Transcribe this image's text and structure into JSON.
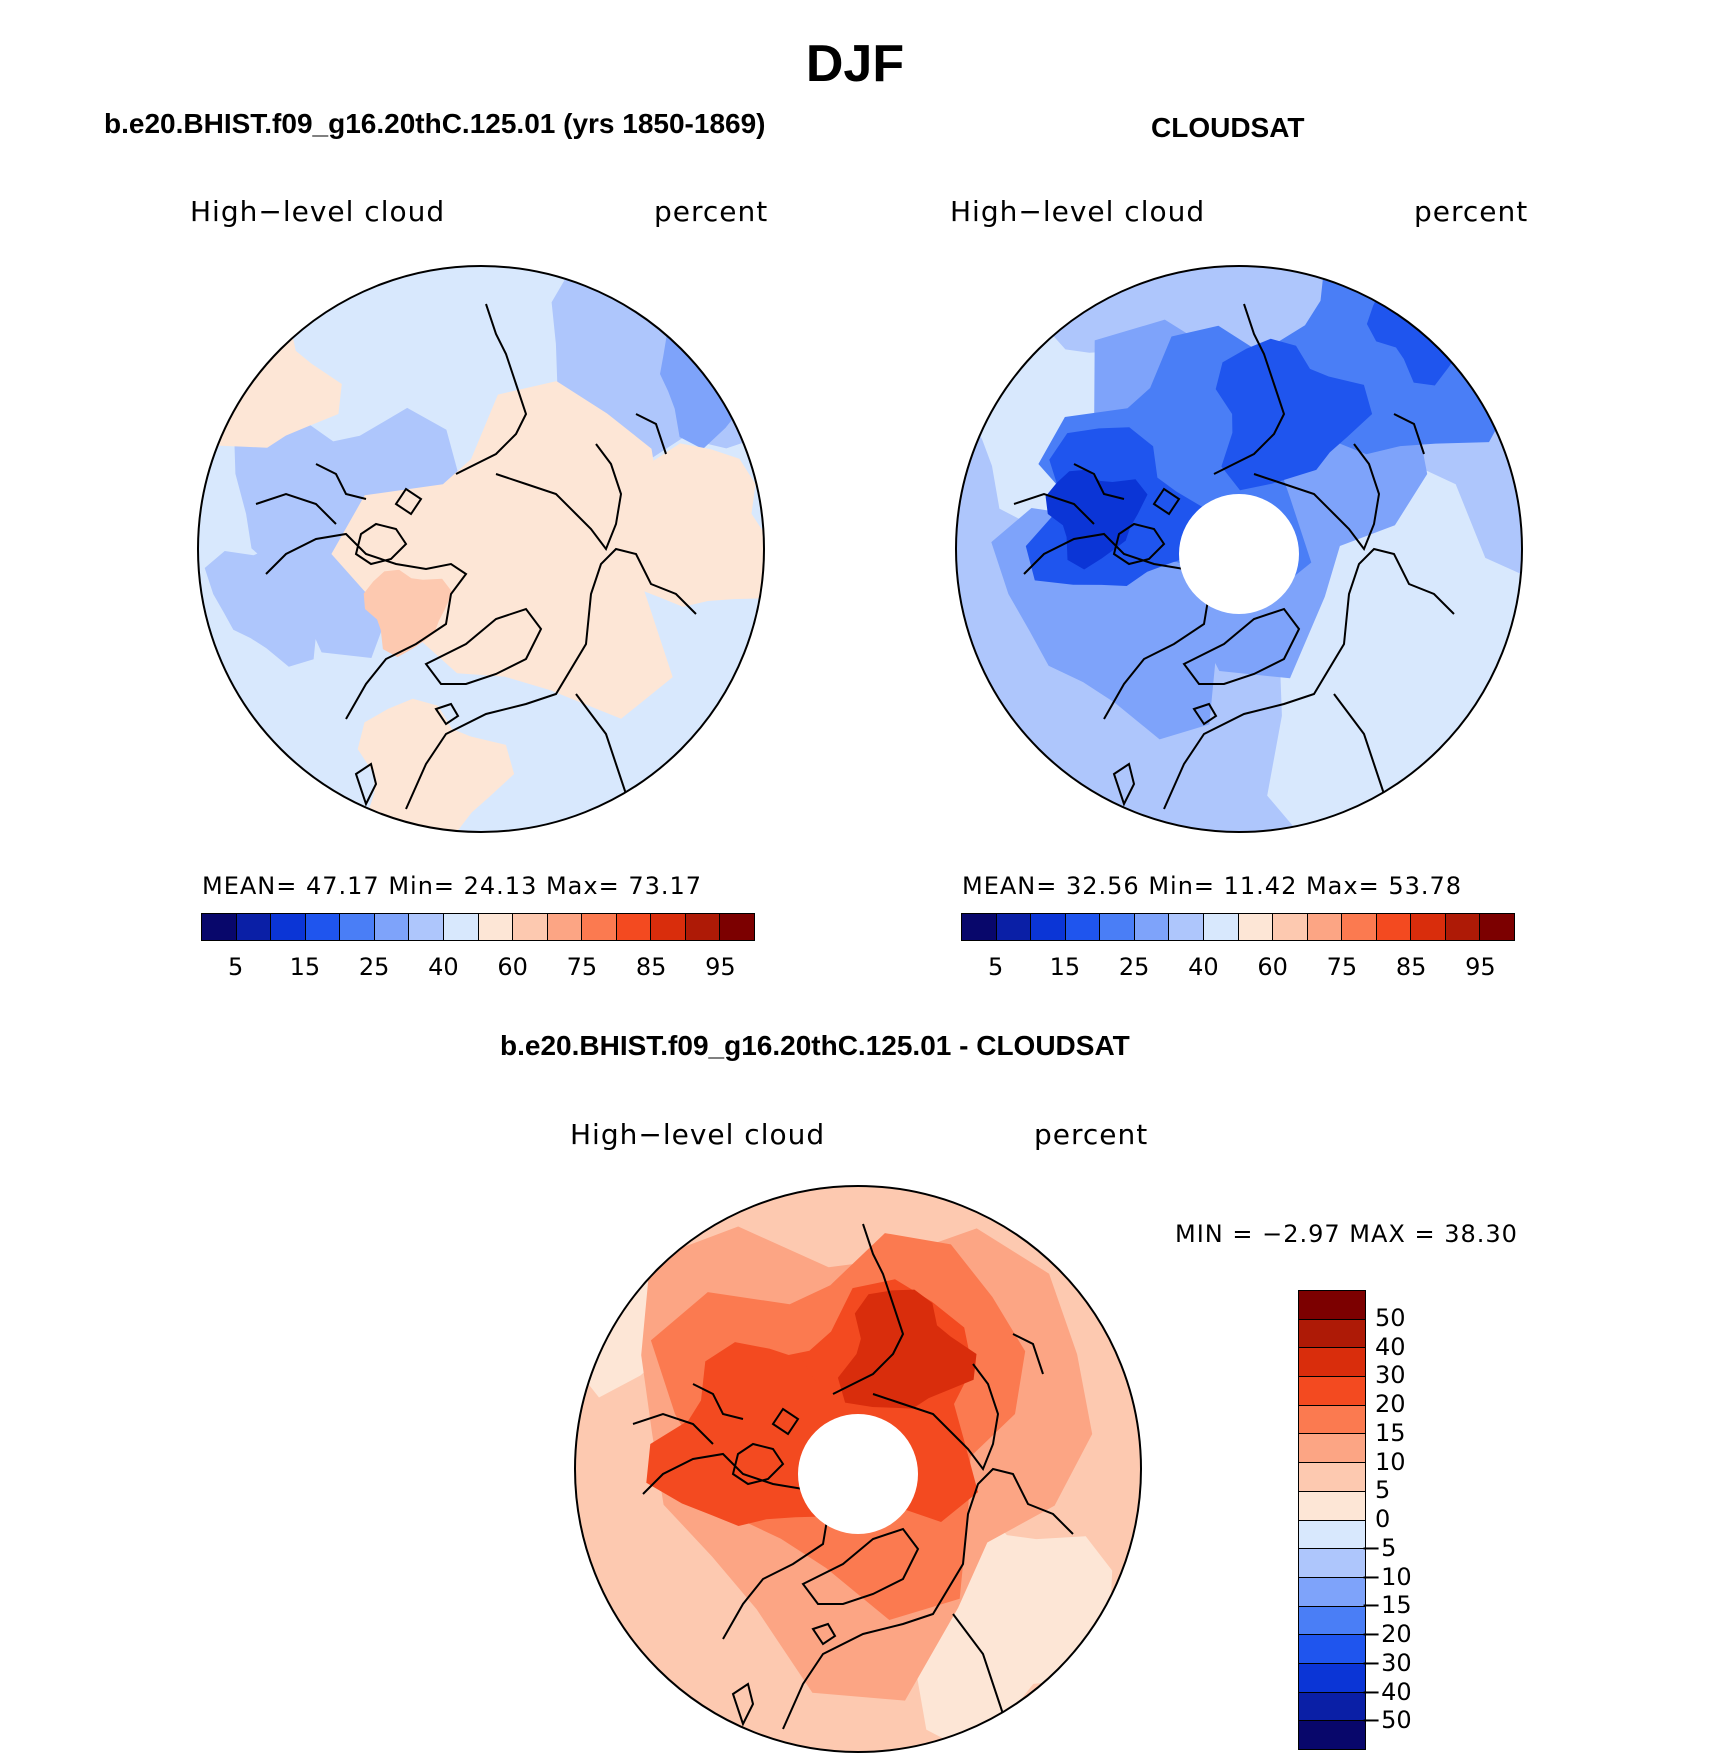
{
  "title": "DJF",
  "panels": [
    {
      "title": "b.e20.BHIST.f09_g16.20thC.125.01 (yrs 1850-1869)",
      "label_left": "High−level cloud",
      "label_right": "percent",
      "stats": "MEAN=   47.17   Min=   24.13   Max=   73.17",
      "field": "model"
    },
    {
      "title": "CLOUDSAT",
      "label_left": "High−level cloud",
      "label_right": "percent",
      "stats": "MEAN=   32.56   Min=   11.42   Max=   53.78",
      "field": "obs"
    },
    {
      "title": "b.e20.BHIST.f09_g16.20thC.125.01 - CLOUDSAT",
      "label_left": "High−level cloud",
      "label_right": "percent",
      "stats": "MIN =   −2.97 MAX =   38.30",
      "field": "diff"
    }
  ],
  "abs_colorbar": {
    "colors": [
      "#08076b",
      "#0a1fa6",
      "#0b35d6",
      "#1f55ee",
      "#4a7ef6",
      "#7ea3fa",
      "#aec6fc",
      "#d8e8fd",
      "#fde6d6",
      "#fdc9b0",
      "#fca584",
      "#fb7a50",
      "#f34a20",
      "#d92d0c",
      "#ae1a06",
      "#7c0000"
    ],
    "ticks": [
      "5",
      "15",
      "25",
      "40",
      "60",
      "75",
      "85",
      "95"
    ]
  },
  "diff_colorbar": {
    "colors": [
      "#7c0000",
      "#ae1a06",
      "#d92d0c",
      "#f34a20",
      "#fb7a50",
      "#fca584",
      "#fdc9b0",
      "#fde6d6",
      "#d8e8fd",
      "#aec6fc",
      "#7ea3fa",
      "#4a7ef6",
      "#1f55ee",
      "#0b35d6",
      "#0a1fa6",
      "#08076b"
    ],
    "ticks": [
      "50",
      "40",
      "30",
      "20",
      "15",
      "10",
      "5",
      "0",
      "−5",
      "−10",
      "−15",
      "−20",
      "−30",
      "−40",
      "−50"
    ]
  },
  "map_colors": {
    "model_base": "#d8e8fd",
    "model_warm": "#fde6d6",
    "model_warm2": "#fdc9b0",
    "model_cool": "#aec6fc",
    "model_cool2": "#7ea3fa",
    "obs_base": "#aec6fc",
    "obs_light": "#d8e8fd",
    "obs_mid": "#7ea3fa",
    "obs_dark": "#4a7ef6",
    "obs_darker": "#1f55ee",
    "obs_darkest": "#0b35d6",
    "diff_base": "#fdc9b0",
    "diff_light": "#fde6d6",
    "diff_mid": "#fca584",
    "diff_strong": "#fb7a50",
    "diff_stronger": "#f34a20",
    "diff_darkest": "#d92d0c"
  }
}
